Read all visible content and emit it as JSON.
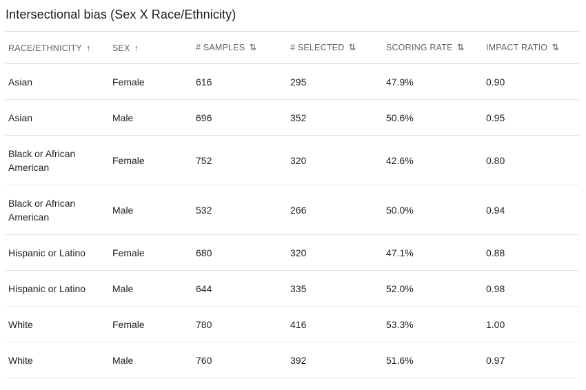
{
  "title": "Intersectional bias (Sex X Race/Ethnicity)",
  "columns": [
    {
      "label": "RACE/ETHNICITY",
      "sort_icon": "arrow-up-icon",
      "glyph": "↑"
    },
    {
      "label": "SEX",
      "sort_icon": "arrow-up-icon",
      "glyph": "↑"
    },
    {
      "label": "# SAMPLES",
      "sort_icon": "sort-updown-icon",
      "glyph": "⇅"
    },
    {
      "label": "# SELECTED",
      "sort_icon": "sort-updown-icon",
      "glyph": "⇅"
    },
    {
      "label": "SCORING RATE",
      "sort_icon": "sort-updown-icon",
      "glyph": "⇅"
    },
    {
      "label": "IMPACT RATIO",
      "sort_icon": "sort-updown-icon",
      "glyph": "⇅"
    }
  ],
  "rows": [
    {
      "race": "Asian",
      "sex": "Female",
      "samples": "616",
      "selected": "295",
      "rate": "47.9%",
      "ratio": "0.90"
    },
    {
      "race": "Asian",
      "sex": "Male",
      "samples": "696",
      "selected": "352",
      "rate": "50.6%",
      "ratio": "0.95"
    },
    {
      "race": "Black or African American",
      "sex": "Female",
      "samples": "752",
      "selected": "320",
      "rate": "42.6%",
      "ratio": "0.80"
    },
    {
      "race": "Black or African American",
      "sex": "Male",
      "samples": "532",
      "selected": "266",
      "rate": "50.0%",
      "ratio": "0.94"
    },
    {
      "race": "Hispanic or Latino",
      "sex": "Female",
      "samples": "680",
      "selected": "320",
      "rate": "47.1%",
      "ratio": "0.88"
    },
    {
      "race": "Hispanic or Latino",
      "sex": "Male",
      "samples": "644",
      "selected": "335",
      "rate": "52.0%",
      "ratio": "0.98"
    },
    {
      "race": "White",
      "sex": "Female",
      "samples": "780",
      "selected": "416",
      "rate": "53.3%",
      "ratio": "1.00"
    },
    {
      "race": "White",
      "sex": "Male",
      "samples": "760",
      "selected": "392",
      "rate": "51.6%",
      "ratio": "0.97"
    }
  ]
}
